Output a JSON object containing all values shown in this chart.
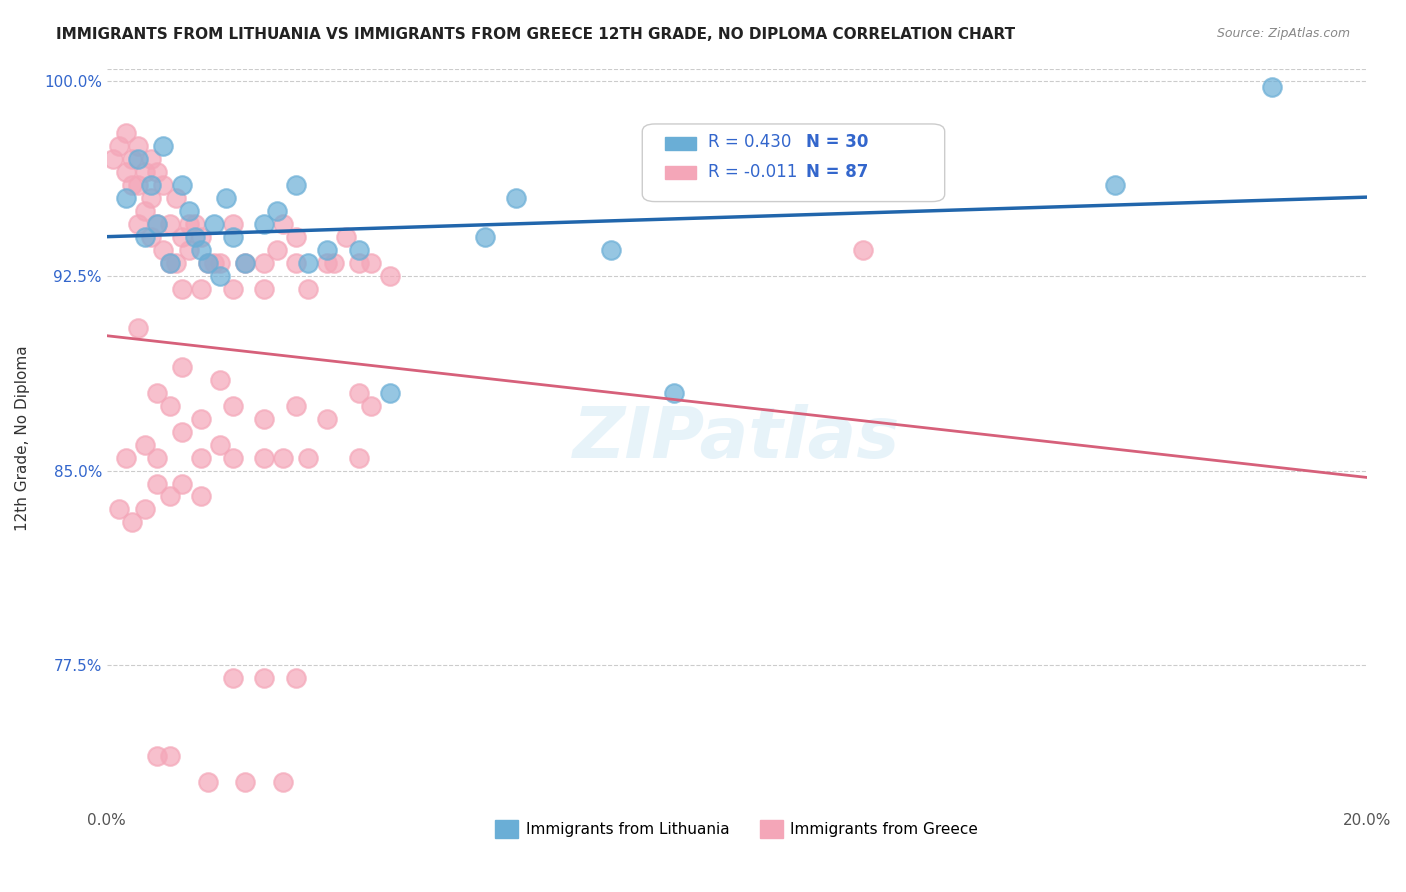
{
  "title": "IMMIGRANTS FROM LITHUANIA VS IMMIGRANTS FROM GREECE 12TH GRADE, NO DIPLOMA CORRELATION CHART",
  "source": "Source: ZipAtlas.com",
  "ylabel": "12th Grade, No Diploma",
  "xlabel": "",
  "xlim": [
    0.0,
    0.2
  ],
  "ylim": [
    0.72,
    1.005
  ],
  "xticks": [
    0.0,
    0.05,
    0.1,
    0.15,
    0.2
  ],
  "xticklabels": [
    "0.0%",
    "",
    "",
    "",
    "20.0%"
  ],
  "yticks": [
    0.775,
    0.85,
    0.925,
    1.0
  ],
  "yticklabels": [
    "77.5%",
    "85.0%",
    "92.5%",
    "100.0%"
  ],
  "legend_r1": "R = 0.430",
  "legend_n1": "N = 30",
  "legend_r2": "R = -0.011",
  "legend_n2": "N = 87",
  "legend_label1": "Immigrants from Lithuania",
  "legend_label2": "Immigrants from Greece",
  "blue_color": "#6aaed6",
  "pink_color": "#f4a6b8",
  "blue_line_color": "#2166ac",
  "pink_line_color": "#d6607a",
  "r1": 0.43,
  "r2": -0.011,
  "watermark": "ZIPatlas",
  "background_color": "#ffffff",
  "grid_color": "#cccccc",
  "lithuania_x": [
    0.003,
    0.005,
    0.006,
    0.007,
    0.008,
    0.009,
    0.01,
    0.012,
    0.013,
    0.014,
    0.015,
    0.016,
    0.017,
    0.018,
    0.019,
    0.02,
    0.022,
    0.025,
    0.027,
    0.03,
    0.032,
    0.035,
    0.04,
    0.045,
    0.06,
    0.065,
    0.08,
    0.09,
    0.16,
    0.185
  ],
  "lithuania_y": [
    0.955,
    0.97,
    0.94,
    0.96,
    0.945,
    0.975,
    0.93,
    0.96,
    0.95,
    0.94,
    0.935,
    0.93,
    0.945,
    0.925,
    0.955,
    0.94,
    0.93,
    0.945,
    0.95,
    0.96,
    0.93,
    0.935,
    0.935,
    0.88,
    0.94,
    0.955,
    0.935,
    0.88,
    0.96,
    0.998
  ],
  "greece_x": [
    0.001,
    0.002,
    0.003,
    0.003,
    0.004,
    0.004,
    0.005,
    0.005,
    0.005,
    0.006,
    0.006,
    0.007,
    0.007,
    0.007,
    0.008,
    0.008,
    0.009,
    0.009,
    0.01,
    0.01,
    0.011,
    0.011,
    0.012,
    0.012,
    0.013,
    0.013,
    0.014,
    0.015,
    0.015,
    0.016,
    0.017,
    0.018,
    0.02,
    0.02,
    0.022,
    0.025,
    0.025,
    0.027,
    0.028,
    0.03,
    0.03,
    0.032,
    0.035,
    0.036,
    0.038,
    0.04,
    0.042,
    0.045,
    0.005,
    0.008,
    0.01,
    0.015,
    0.012,
    0.018,
    0.02,
    0.025,
    0.03,
    0.035,
    0.04,
    0.042,
    0.003,
    0.006,
    0.008,
    0.012,
    0.015,
    0.018,
    0.02,
    0.025,
    0.028,
    0.032,
    0.04,
    0.008,
    0.01,
    0.012,
    0.015,
    0.002,
    0.004,
    0.006,
    0.008,
    0.01,
    0.12,
    0.02,
    0.025,
    0.03,
    0.016,
    0.022,
    0.028
  ],
  "greece_y": [
    0.97,
    0.975,
    0.965,
    0.98,
    0.96,
    0.97,
    0.975,
    0.96,
    0.945,
    0.965,
    0.95,
    0.97,
    0.94,
    0.955,
    0.965,
    0.945,
    0.96,
    0.935,
    0.945,
    0.93,
    0.955,
    0.93,
    0.94,
    0.92,
    0.935,
    0.945,
    0.945,
    0.94,
    0.92,
    0.93,
    0.93,
    0.93,
    0.945,
    0.92,
    0.93,
    0.92,
    0.93,
    0.935,
    0.945,
    0.93,
    0.94,
    0.92,
    0.93,
    0.93,
    0.94,
    0.93,
    0.93,
    0.925,
    0.905,
    0.88,
    0.875,
    0.87,
    0.89,
    0.885,
    0.875,
    0.87,
    0.875,
    0.87,
    0.88,
    0.875,
    0.855,
    0.86,
    0.855,
    0.865,
    0.855,
    0.86,
    0.855,
    0.855,
    0.855,
    0.855,
    0.855,
    0.845,
    0.84,
    0.845,
    0.84,
    0.835,
    0.83,
    0.835,
    0.74,
    0.74,
    0.935,
    0.77,
    0.77,
    0.77,
    0.73,
    0.73,
    0.73
  ]
}
